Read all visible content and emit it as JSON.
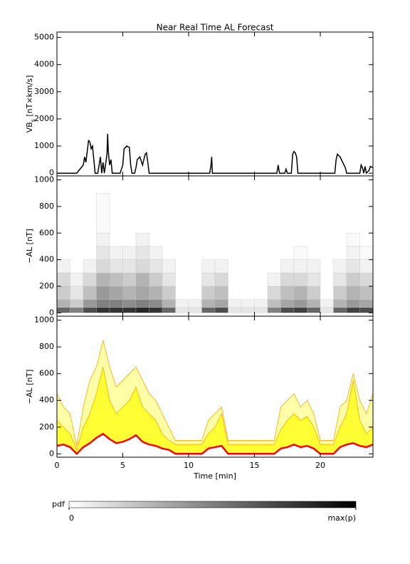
{
  "chart_data": [
    {
      "type": "line",
      "title": "Near Real Time AL Forecast",
      "y_label": "VB",
      "y_label_sub": "s",
      "y_label_unit": "[nT×km/s]",
      "color": "#000000",
      "x": [
        0,
        1.5,
        2.0,
        2.1,
        2.2,
        2.4,
        2.5,
        2.6,
        2.7,
        2.8,
        2.9,
        3.1,
        3.2,
        3.3,
        3.4,
        3.5,
        3.6,
        3.8,
        3.85,
        3.9,
        4.0,
        4.1,
        4.2,
        4.8,
        5.0,
        5.1,
        5.3,
        5.5,
        5.6,
        5.7,
        5.9,
        6.0,
        6.1,
        6.3,
        6.5,
        6.7,
        6.8,
        6.9,
        7.0,
        11.6,
        11.7,
        11.75,
        11.8,
        16.7,
        16.8,
        16.9,
        17.3,
        17.4,
        17.5,
        17.8,
        17.9,
        18.0,
        18.1,
        18.2,
        18.3,
        21.1,
        21.2,
        21.3,
        21.5,
        21.7,
        21.9,
        22.0,
        23.0,
        23.1,
        23.2,
        23.3,
        23.4,
        23.5,
        23.7,
        23.8,
        24
      ],
      "values": [
        0,
        0,
        300,
        600,
        400,
        1200,
        1150,
        900,
        1000,
        500,
        0,
        0,
        300,
        600,
        0,
        400,
        0,
        700,
        1450,
        800,
        300,
        500,
        0,
        0,
        300,
        900,
        1000,
        950,
        300,
        0,
        0,
        200,
        500,
        600,
        300,
        700,
        750,
        400,
        0,
        0,
        300,
        600,
        0,
        0,
        300,
        0,
        0,
        150,
        0,
        0,
        700,
        800,
        750,
        600,
        0,
        0,
        500,
        700,
        600,
        400,
        200,
        0,
        0,
        300,
        200,
        0,
        250,
        0,
        100,
        250,
        200
      ],
      "xlim": [
        0,
        24
      ],
      "xticks": [
        0,
        5,
        10,
        15,
        20
      ],
      "ylim": [
        -100,
        5200
      ],
      "yticks": [
        0,
        1000,
        2000,
        3000,
        4000,
        5000
      ]
    },
    {
      "type": "heatmap",
      "y_label": "−AL [nT]",
      "x_edges": [
        0,
        1,
        2,
        3,
        4,
        5,
        6,
        7,
        8,
        9,
        10,
        11,
        12,
        13,
        14,
        15,
        16,
        17,
        18,
        19,
        20,
        21,
        22,
        23,
        24
      ],
      "y_edges": [
        0,
        40,
        100,
        200,
        300,
        400,
        500,
        600,
        900
      ],
      "z": [
        [
          0.6,
          0.3,
          0.2,
          0.15,
          0.05,
          0,
          0,
          0
        ],
        [
          0.5,
          0.2,
          0.1,
          0.05,
          0,
          0,
          0,
          0
        ],
        [
          0.7,
          0.4,
          0.25,
          0.15,
          0.05,
          0,
          0,
          0
        ],
        [
          0.8,
          0.5,
          0.4,
          0.3,
          0.15,
          0.1,
          0.05,
          0.02
        ],
        [
          0.8,
          0.5,
          0.35,
          0.25,
          0.1,
          0.05,
          0,
          0
        ],
        [
          0.8,
          0.45,
          0.3,
          0.2,
          0.1,
          0.05,
          0,
          0
        ],
        [
          0.85,
          0.5,
          0.35,
          0.3,
          0.15,
          0.1,
          0.05,
          0
        ],
        [
          0.8,
          0.45,
          0.3,
          0.2,
          0.1,
          0.05,
          0,
          0
        ],
        [
          0.6,
          0.3,
          0.2,
          0.1,
          0.05,
          0,
          0,
          0
        ],
        [
          0.1,
          0.05,
          0,
          0,
          0,
          0,
          0,
          0
        ],
        [
          0.1,
          0.05,
          0,
          0,
          0,
          0,
          0,
          0
        ],
        [
          0.6,
          0.3,
          0.2,
          0.1,
          0.05,
          0,
          0,
          0
        ],
        [
          0.7,
          0.35,
          0.25,
          0.15,
          0.05,
          0,
          0,
          0
        ],
        [
          0.1,
          0.05,
          0,
          0,
          0,
          0,
          0,
          0
        ],
        [
          0.1,
          0.05,
          0,
          0,
          0,
          0,
          0,
          0
        ],
        [
          0.1,
          0.05,
          0,
          0,
          0,
          0,
          0,
          0
        ],
        [
          0.5,
          0.25,
          0.15,
          0.05,
          0,
          0,
          0,
          0
        ],
        [
          0.7,
          0.35,
          0.25,
          0.15,
          0.05,
          0,
          0,
          0
        ],
        [
          0.75,
          0.4,
          0.3,
          0.15,
          0.05,
          0.02,
          0,
          0
        ],
        [
          0.6,
          0.3,
          0.2,
          0.1,
          0.05,
          0,
          0,
          0
        ],
        [
          0.1,
          0.05,
          0,
          0,
          0,
          0,
          0,
          0
        ],
        [
          0.6,
          0.3,
          0.2,
          0.1,
          0.05,
          0,
          0,
          0
        ],
        [
          0.75,
          0.4,
          0.3,
          0.2,
          0.1,
          0.05,
          0.02,
          0
        ],
        [
          0.7,
          0.35,
          0.25,
          0.15,
          0.05,
          0.02,
          0,
          0
        ]
      ],
      "zlim": [
        0,
        1
      ],
      "colorbar": {
        "label": "pdf",
        "ticks": [
          0,
          {
            "value": 1,
            "label": "max(p)"
          }
        ]
      },
      "xlim": [
        0,
        24
      ],
      "xticks": [
        0,
        5,
        10,
        15,
        20
      ],
      "ylim": [
        -25,
        1030
      ],
      "yticks": [
        0,
        200,
        400,
        600,
        800,
        1000
      ]
    },
    {
      "type": "area",
      "y_label": "−AL [nT]",
      "x_label": "Time [min]",
      "x": [
        0,
        0.5,
        1,
        1.5,
        2,
        2.5,
        3,
        3.5,
        4,
        4.5,
        5,
        5.5,
        6,
        6.5,
        7,
        7.5,
        8,
        8.5,
        9,
        9.5,
        10,
        10.5,
        11,
        11.5,
        12,
        12.5,
        13,
        13.5,
        14,
        14.5,
        15,
        15.5,
        16,
        16.5,
        17,
        17.5,
        18,
        18.5,
        19,
        19.5,
        20,
        20.5,
        21,
        21.5,
        22,
        22.5,
        23,
        23.5,
        24
      ],
      "series": [
        {
          "color": "#ffa500",
          "fill": "#ffffa8",
          "values": [
            450,
            350,
            300,
            60,
            350,
            550,
            650,
            850,
            650,
            500,
            550,
            600,
            650,
            550,
            450,
            400,
            300,
            200,
            100,
            100,
            100,
            100,
            100,
            250,
            300,
            350,
            100,
            100,
            100,
            100,
            100,
            100,
            100,
            100,
            350,
            400,
            450,
            350,
            400,
            300,
            100,
            100,
            100,
            350,
            400,
            600,
            400,
            300,
            450
          ]
        },
        {
          "color": "#ffa500",
          "fill": "#ffff33",
          "values": [
            250,
            200,
            150,
            30,
            200,
            300,
            450,
            650,
            400,
            300,
            350,
            400,
            500,
            350,
            300,
            250,
            150,
            100,
            70,
            70,
            70,
            70,
            70,
            150,
            200,
            300,
            70,
            70,
            70,
            70,
            70,
            70,
            70,
            70,
            180,
            250,
            300,
            250,
            280,
            200,
            70,
            70,
            70,
            200,
            300,
            550,
            250,
            150,
            200
          ]
        },
        {
          "color": "#ff0000",
          "fill": "#ffffff",
          "values": [
            60,
            70,
            50,
            0,
            50,
            80,
            120,
            150,
            110,
            80,
            90,
            110,
            140,
            90,
            70,
            60,
            40,
            30,
            0,
            0,
            0,
            0,
            0,
            40,
            50,
            60,
            0,
            0,
            0,
            0,
            0,
            0,
            0,
            0,
            40,
            50,
            70,
            50,
            60,
            40,
            0,
            0,
            0,
            50,
            70,
            80,
            60,
            50,
            70
          ]
        }
      ],
      "xlim": [
        0,
        24
      ],
      "xticks": [
        0,
        5,
        10,
        15,
        20
      ],
      "ylim": [
        -25,
        1030
      ],
      "yticks": [
        0,
        200,
        400,
        600,
        800,
        1000
      ]
    }
  ]
}
